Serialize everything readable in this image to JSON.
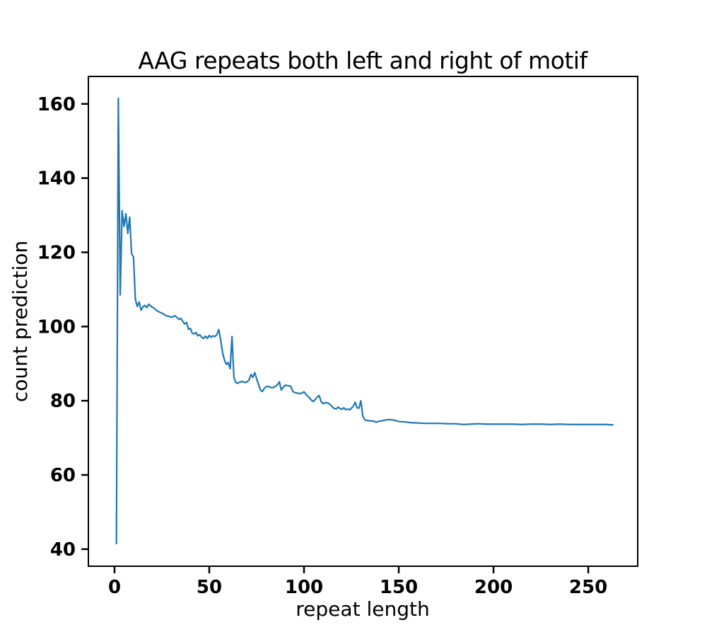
{
  "figure": {
    "background": "#ffffff",
    "spine_color": "#000000",
    "text_color": "#000000"
  },
  "chart_data": {
    "type": "line",
    "title": "AAG repeats both left and right of motif",
    "xlabel": "repeat length",
    "ylabel": "count prediction",
    "x_ticks": [
      0,
      50,
      100,
      150,
      200,
      250
    ],
    "y_ticks": [
      40,
      60,
      80,
      100,
      120,
      140,
      160
    ],
    "xlim": [
      -13.8,
      276.1
    ],
    "ylim": [
      35.4,
      167.4
    ],
    "grid": false,
    "legend_position": "none",
    "line_color": "#1f77b4",
    "series": [
      {
        "name": "count prediction",
        "points": [
          [
            1,
            41.5
          ],
          [
            2,
            161.5
          ],
          [
            3,
            108.5
          ],
          [
            4,
            131.2
          ],
          [
            5,
            127.0
          ],
          [
            6,
            130.4
          ],
          [
            7,
            125.1
          ],
          [
            8,
            129.5
          ],
          [
            9,
            119.6
          ],
          [
            10,
            118.8
          ],
          [
            11,
            107.3
          ],
          [
            12,
            105.4
          ],
          [
            13,
            106.6
          ],
          [
            14,
            104.4
          ],
          [
            15,
            105.3
          ],
          [
            16,
            105.7
          ],
          [
            17,
            105.1
          ],
          [
            18,
            106.0
          ],
          [
            19,
            105.6
          ],
          [
            20,
            105.2
          ],
          [
            21,
            104.9
          ],
          [
            22,
            104.4
          ],
          [
            23,
            104.1
          ],
          [
            24,
            103.8
          ],
          [
            25,
            103.6
          ],
          [
            26,
            103.3
          ],
          [
            27,
            103.0
          ],
          [
            28,
            102.8
          ],
          [
            29,
            102.7
          ],
          [
            30,
            102.5
          ],
          [
            31,
            102.7
          ],
          [
            32,
            102.9
          ],
          [
            33,
            102.4
          ],
          [
            34,
            101.9
          ],
          [
            35,
            102.2
          ],
          [
            36,
            101.4
          ],
          [
            37,
            100.7
          ],
          [
            38,
            101.1
          ],
          [
            39,
            99.3
          ],
          [
            40,
            99.5
          ],
          [
            41,
            98.2
          ],
          [
            42,
            98.0
          ],
          [
            43,
            98.4
          ],
          [
            44,
            97.5
          ],
          [
            45,
            97.8
          ],
          [
            46,
            97.1
          ],
          [
            47,
            96.8
          ],
          [
            48,
            97.4
          ],
          [
            49,
            96.8
          ],
          [
            50,
            97.6
          ],
          [
            51,
            97.1
          ],
          [
            52,
            97.5
          ],
          [
            53,
            97.3
          ],
          [
            54,
            97.8
          ],
          [
            55,
            99.2
          ],
          [
            56,
            96.5
          ],
          [
            57,
            93.0
          ],
          [
            58,
            91.0
          ],
          [
            59,
            89.8
          ],
          [
            60,
            90.3
          ],
          [
            61,
            88.6
          ],
          [
            62,
            97.3
          ],
          [
            63,
            86.3
          ],
          [
            64,
            84.9
          ],
          [
            65,
            84.7
          ],
          [
            66,
            85.0
          ],
          [
            67,
            85.2
          ],
          [
            68,
            85.1
          ],
          [
            69,
            84.9
          ],
          [
            70,
            85.1
          ],
          [
            71,
            85.6
          ],
          [
            72,
            87.1
          ],
          [
            73,
            86.3
          ],
          [
            74,
            87.6
          ],
          [
            75,
            85.9
          ],
          [
            76,
            84.4
          ],
          [
            77,
            82.9
          ],
          [
            78,
            82.5
          ],
          [
            79,
            83.3
          ],
          [
            80,
            83.8
          ],
          [
            81,
            83.9
          ],
          [
            82,
            83.7
          ],
          [
            83,
            83.5
          ],
          [
            84,
            83.6
          ],
          [
            85,
            83.9
          ],
          [
            86,
            84.3
          ],
          [
            87,
            85.1
          ],
          [
            88,
            82.9
          ],
          [
            89,
            83.6
          ],
          [
            90,
            84.2
          ],
          [
            91,
            84.1
          ],
          [
            92,
            84.0
          ],
          [
            93,
            83.9
          ],
          [
            94,
            82.6
          ],
          [
            95,
            82.2
          ],
          [
            96,
            82.1
          ],
          [
            97,
            82.0
          ],
          [
            98,
            81.9
          ],
          [
            99,
            82.1
          ],
          [
            100,
            82.4
          ],
          [
            101,
            81.7
          ],
          [
            102,
            81.2
          ],
          [
            103,
            80.7
          ],
          [
            104,
            80.1
          ],
          [
            105,
            79.8
          ],
          [
            106,
            80.4
          ],
          [
            107,
            81.0
          ],
          [
            108,
            81.4
          ],
          [
            109,
            79.8
          ],
          [
            110,
            79.2
          ],
          [
            111,
            79.4
          ],
          [
            112,
            79.5
          ],
          [
            113,
            79.3
          ],
          [
            114,
            78.9
          ],
          [
            115,
            78.3
          ],
          [
            116,
            77.9
          ],
          [
            117,
            77.8
          ],
          [
            118,
            78.3
          ],
          [
            119,
            77.9
          ],
          [
            120,
            77.7
          ],
          [
            121,
            78.1
          ],
          [
            122,
            77.6
          ],
          [
            123,
            77.8
          ],
          [
            124,
            77.5
          ],
          [
            125,
            78.0
          ],
          [
            126,
            78.5
          ],
          [
            127,
            79.6
          ],
          [
            128,
            78.1
          ],
          [
            129,
            78.0
          ],
          [
            130,
            80.0
          ],
          [
            131,
            75.9
          ],
          [
            132,
            74.9
          ],
          [
            133,
            74.7
          ],
          [
            134,
            74.6
          ],
          [
            135,
            74.6
          ],
          [
            136,
            74.5
          ],
          [
            137,
            74.5
          ],
          [
            138,
            74.2
          ],
          [
            139,
            74.4
          ],
          [
            140,
            74.5
          ],
          [
            142,
            74.7
          ],
          [
            144,
            74.9
          ],
          [
            146,
            74.9
          ],
          [
            148,
            74.7
          ],
          [
            150,
            74.4
          ],
          [
            153,
            74.3
          ],
          [
            156,
            74.1
          ],
          [
            160,
            74.0
          ],
          [
            164,
            73.9
          ],
          [
            168,
            73.9
          ],
          [
            172,
            73.9
          ],
          [
            176,
            73.8
          ],
          [
            180,
            73.8
          ],
          [
            184,
            73.6
          ],
          [
            188,
            73.7
          ],
          [
            192,
            73.8
          ],
          [
            196,
            73.7
          ],
          [
            200,
            73.7
          ],
          [
            205,
            73.7
          ],
          [
            210,
            73.7
          ],
          [
            215,
            73.6
          ],
          [
            220,
            73.7
          ],
          [
            225,
            73.7
          ],
          [
            230,
            73.6
          ],
          [
            235,
            73.7
          ],
          [
            240,
            73.6
          ],
          [
            245,
            73.6
          ],
          [
            250,
            73.6
          ],
          [
            255,
            73.6
          ],
          [
            259,
            73.6
          ],
          [
            263,
            73.5
          ]
        ]
      }
    ]
  }
}
